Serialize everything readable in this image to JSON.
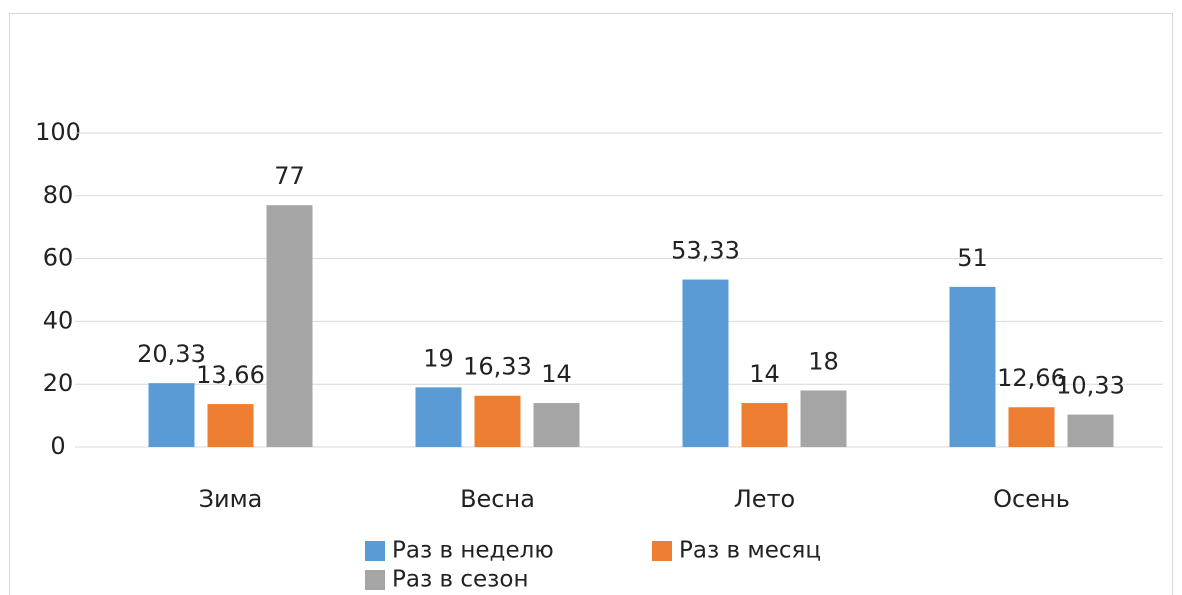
{
  "chart_data": {
    "type": "bar",
    "categories": [
      "Зима",
      "Весна",
      "Лето",
      "Осень"
    ],
    "series": [
      {
        "name": "Раз в неделю",
        "color": "#5b9bd5",
        "values": [
          20.33,
          19,
          53.33,
          51
        ],
        "value_labels": [
          "20,33",
          "19",
          "53,33",
          "51"
        ]
      },
      {
        "name": "Раз в месяц",
        "color": "#ed7d31",
        "values": [
          13.66,
          16.33,
          14,
          12.66
        ],
        "value_labels": [
          "13,66",
          "16,33",
          "14",
          "12,66"
        ]
      },
      {
        "name": "Раз в сезон",
        "color": "#a5a5a5",
        "values": [
          77,
          14,
          18,
          10.33
        ],
        "value_labels": [
          "77",
          "14",
          "18",
          "10,33"
        ]
      }
    ],
    "ylim": [
      0,
      100
    ],
    "yticks": [
      0,
      20,
      40,
      60,
      80,
      100
    ],
    "grid": true
  }
}
